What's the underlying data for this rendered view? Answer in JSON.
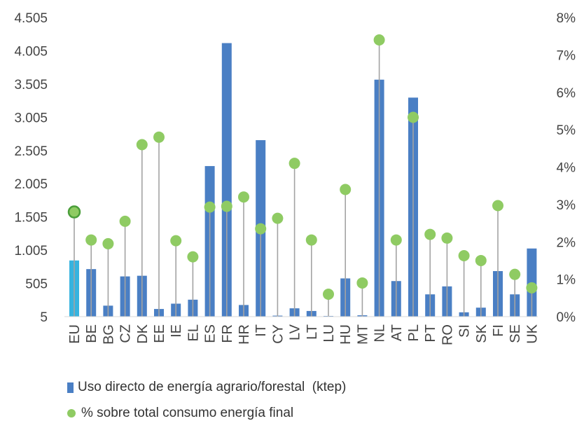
{
  "chart_data": {
    "type": "bar",
    "categories": [
      "EU",
      "BE",
      "BG",
      "CZ",
      "DK",
      "EE",
      "IE",
      "EL",
      "ES",
      "FR",
      "HR",
      "IT",
      "CY",
      "LV",
      "LT",
      "LU",
      "HU",
      "MT",
      "NL",
      "AT",
      "PL",
      "PT",
      "RO",
      "SI",
      "SK",
      "FI",
      "SE",
      "UK"
    ],
    "series": [
      {
        "name": "Uso directo de energía agrario/forestal  (ktep)",
        "type": "bar",
        "axis": "left",
        "values": [
          850,
          720,
          170,
          610,
          620,
          120,
          200,
          260,
          2270,
          4120,
          180,
          2660,
          20,
          130,
          90,
          15,
          580,
          25,
          3570,
          540,
          3300,
          340,
          460,
          70,
          140,
          690,
          340,
          1030
        ]
      },
      {
        "name": "% sobre total consumo energía final",
        "type": "dot",
        "axis": "right",
        "values": [
          2.8,
          2.05,
          1.95,
          2.55,
          4.6,
          4.8,
          2.03,
          1.6,
          2.93,
          2.95,
          3.2,
          2.35,
          2.63,
          4.1,
          2.05,
          0.6,
          3.4,
          0.9,
          7.4,
          2.05,
          5.33,
          2.2,
          2.1,
          1.63,
          1.5,
          2.97,
          1.13,
          0.77
        ]
      }
    ],
    "y_left": {
      "ticks": [
        "5",
        "505",
        "1.005",
        "1.505",
        "2.005",
        "2.505",
        "3.005",
        "3.505",
        "4.005",
        "4.505"
      ],
      "range": [
        5,
        4505
      ]
    },
    "y_right": {
      "ticks": [
        "0%",
        "1%",
        "2%",
        "3%",
        "4%",
        "5%",
        "6%",
        "7%",
        "8%"
      ],
      "range": [
        0,
        8
      ]
    },
    "colors": {
      "bar": "#4a7fc4",
      "bar_highlight": "#36b3df",
      "dot": "#8fcb63",
      "dot_highlight_border": "#4a9e3a",
      "stem": "#a3a3a3",
      "axis_text": "#444444"
    },
    "legend": {
      "position": "bottom-left",
      "bar_label": "Uso directo de energía agrario/forestal  (ktep)",
      "dot_label": "% sobre total consumo energía final"
    },
    "grid": false
  }
}
